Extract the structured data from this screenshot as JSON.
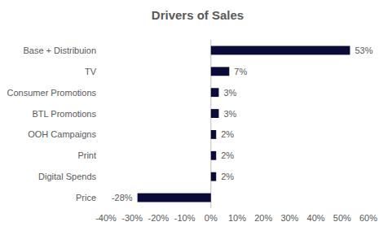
{
  "chart_data": {
    "type": "bar",
    "title": "Drivers of Sales",
    "orientation": "horizontal",
    "categories": [
      "Base + Distribuion",
      "TV",
      "Consumer Promotions",
      "BTL Promotions",
      "OOH Campaigns",
      "Print",
      "Digital Spends",
      "Price"
    ],
    "values": [
      53,
      7,
      3,
      3,
      2,
      2,
      2,
      -28
    ],
    "value_labels": [
      "53%",
      "7%",
      "3%",
      "3%",
      "2%",
      "2%",
      "2%",
      "-28%"
    ],
    "color": "#0b0b3b",
    "xlim": [
      -40,
      60
    ],
    "xticks": [
      {
        "value": -40,
        "label": "-40%"
      },
      {
        "value": -30,
        "label": "-30%"
      },
      {
        "value": -20,
        "label": "-20%"
      },
      {
        "value": -10,
        "label": "-10%"
      },
      {
        "value": 0,
        "label": "0%"
      },
      {
        "value": 10,
        "label": "10%"
      },
      {
        "value": 20,
        "label": "20%"
      },
      {
        "value": 30,
        "label": "30%"
      },
      {
        "value": 40,
        "label": "40%"
      },
      {
        "value": 50,
        "label": "50%"
      },
      {
        "value": 60,
        "label": "60%"
      }
    ],
    "grid": false,
    "data_labels": true
  }
}
